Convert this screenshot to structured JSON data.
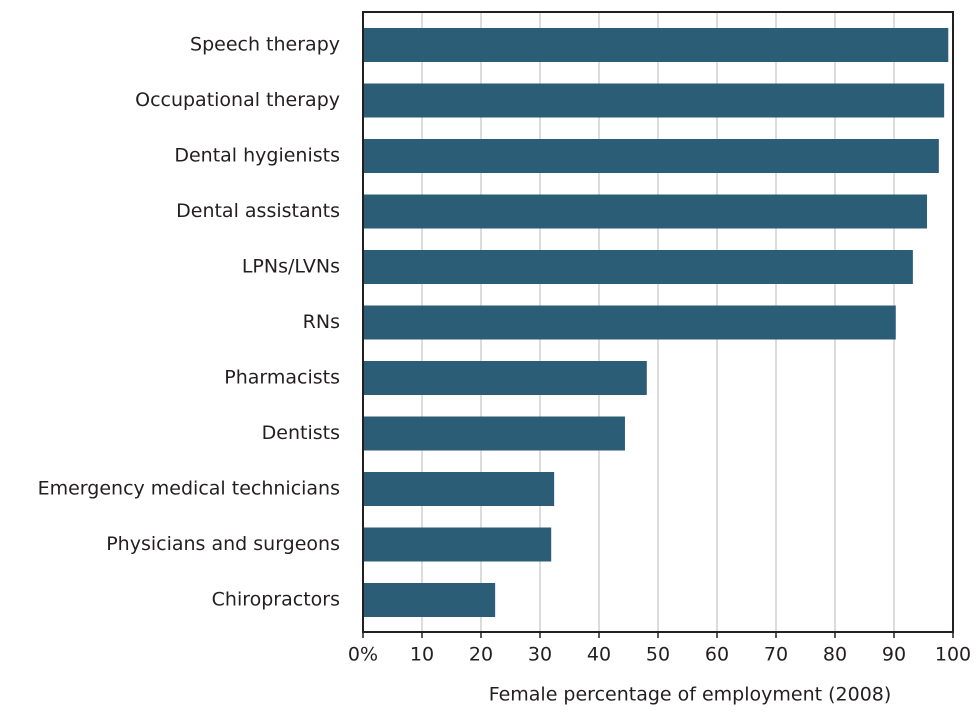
{
  "chart_data": {
    "type": "barh",
    "xlabel": "Female percentage of employment (2008)",
    "categories": [
      "Speech therapy",
      "Occupational therapy",
      "Dental hygienists",
      "Dental assistants",
      "LPNs/LVNs",
      "RNs",
      "Pharmacists",
      "Dentists",
      "Emergency medical technicians",
      "Physicians and surgeons",
      "Chiropractors"
    ],
    "values": [
      99.2,
      98.5,
      97.6,
      95.6,
      93.2,
      90.3,
      48.1,
      44.4,
      32.4,
      31.9,
      22.4
    ],
    "color": "#2b5d76",
    "xlim": [
      0,
      100
    ],
    "xticks": [
      {
        "value": 0,
        "label": "0%"
      },
      10,
      20,
      30,
      40,
      50,
      60,
      70,
      80,
      90,
      100
    ],
    "grid": true
  }
}
